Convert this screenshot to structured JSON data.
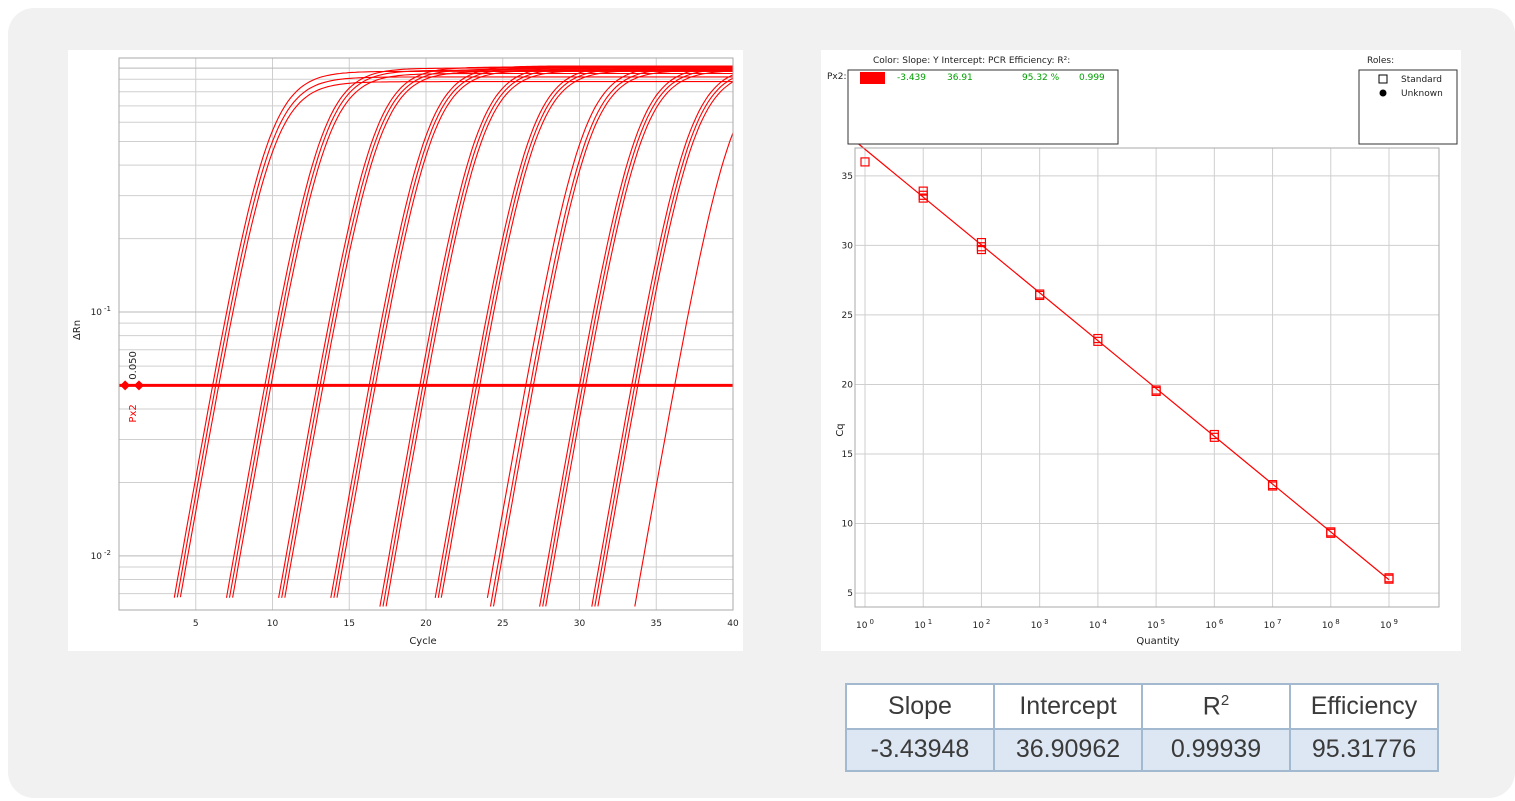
{
  "colors": {
    "curve": "#ff0000",
    "fit_text": "#00a000",
    "grid": "#cfcfcf",
    "table_border": "#a3b9cf",
    "table_value_bg": "#dde7f3"
  },
  "chart_data": [
    {
      "type": "line",
      "xlabel": "Cycle",
      "ylabel": "ΔRn",
      "xlim": [
        0,
        40
      ],
      "ylim": [
        0.006,
        1.1
      ],
      "y_scale": "log",
      "x_ticks": [
        5,
        10,
        15,
        20,
        25,
        30,
        35,
        40
      ],
      "y_ticks": [
        {
          "value": 0.01,
          "label": "10 -2"
        },
        {
          "value": 0.1,
          "label": "10 -1"
        }
      ],
      "threshold": {
        "name": "Px2",
        "value": 0.05,
        "label": "0.050",
        "markers_x": [
          0.4,
          1.3
        ]
      },
      "baseline_floor": 0.006,
      "series": [
        {
          "ct": 6.1,
          "plateau": 0.97,
          "k": 0.82
        },
        {
          "ct": 6.3,
          "plateau": 0.92,
          "k": 0.82
        },
        {
          "ct": 6.5,
          "plateau": 0.88,
          "k": 0.82
        },
        {
          "ct": 9.5,
          "plateau": 1.0,
          "k": 0.82
        },
        {
          "ct": 9.7,
          "plateau": 0.98,
          "k": 0.82
        },
        {
          "ct": 9.9,
          "plateau": 0.95,
          "k": 0.82
        },
        {
          "ct": 12.9,
          "plateau": 1.01,
          "k": 0.82
        },
        {
          "ct": 13.1,
          "plateau": 0.99,
          "k": 0.82
        },
        {
          "ct": 13.3,
          "plateau": 0.97,
          "k": 0.82
        },
        {
          "ct": 16.3,
          "plateau": 1.02,
          "k": 0.82
        },
        {
          "ct": 16.5,
          "plateau": 1.0,
          "k": 0.82
        },
        {
          "ct": 16.7,
          "plateau": 0.98,
          "k": 0.82
        },
        {
          "ct": 19.6,
          "plateau": 1.02,
          "k": 0.82
        },
        {
          "ct": 19.8,
          "plateau": 1.0,
          "k": 0.82
        },
        {
          "ct": 20.0,
          "plateau": 0.98,
          "k": 0.82
        },
        {
          "ct": 23.1,
          "plateau": 1.02,
          "k": 0.82
        },
        {
          "ct": 23.3,
          "plateau": 1.0,
          "k": 0.82
        },
        {
          "ct": 23.5,
          "plateau": 0.98,
          "k": 0.82
        },
        {
          "ct": 26.5,
          "plateau": 1.02,
          "k": 0.82
        },
        {
          "ct": 26.8,
          "plateau": 1.0,
          "k": 0.82
        },
        {
          "ct": 27.0,
          "plateau": 0.98,
          "k": 0.82
        },
        {
          "ct": 30.0,
          "plateau": 1.02,
          "k": 0.82
        },
        {
          "ct": 30.2,
          "plateau": 1.0,
          "k": 0.82
        },
        {
          "ct": 30.4,
          "plateau": 0.98,
          "k": 0.82
        },
        {
          "ct": 33.4,
          "plateau": 1.02,
          "k": 0.82
        },
        {
          "ct": 33.6,
          "plateau": 1.0,
          "k": 0.82
        },
        {
          "ct": 33.8,
          "plateau": 0.98,
          "k": 0.82
        },
        {
          "ct": 36.2,
          "plateau": 1.0,
          "k": 0.82
        }
      ]
    },
    {
      "type": "scatter",
      "xlabel": "Quantity",
      "ylabel": "Cq",
      "x_scale": "log",
      "xlim": [
        1,
        1000000000
      ],
      "ylim": [
        4,
        37
      ],
      "x_ticks": [
        {
          "value": 1,
          "label": "10 0"
        },
        {
          "value": 10,
          "label": "10 1"
        },
        {
          "value": 100,
          "label": "10 2"
        },
        {
          "value": 1000,
          "label": "10 3"
        },
        {
          "value": 10000,
          "label": "10 4"
        },
        {
          "value": 100000,
          "label": "10 5"
        },
        {
          "value": 1000000,
          "label": "10 6"
        },
        {
          "value": 10000000,
          "label": "10 7"
        },
        {
          "value": 100000000,
          "label": "10 8"
        },
        {
          "value": 1000000000,
          "label": "10 9"
        }
      ],
      "y_ticks": [
        5,
        10,
        15,
        20,
        25,
        30,
        35
      ],
      "fit_line": {
        "slope": -3.439,
        "intercept": 36.91
      },
      "points": [
        {
          "x": 1,
          "y": 36.0
        },
        {
          "x": 10,
          "y": 33.9
        },
        {
          "x": 10,
          "y": 33.6
        },
        {
          "x": 10,
          "y": 33.4
        },
        {
          "x": 100,
          "y": 30.2
        },
        {
          "x": 100,
          "y": 29.9
        },
        {
          "x": 100,
          "y": 29.7
        },
        {
          "x": 1000,
          "y": 26.5
        },
        {
          "x": 1000,
          "y": 26.4
        },
        {
          "x": 10000,
          "y": 23.3
        },
        {
          "x": 10000,
          "y": 23.1
        },
        {
          "x": 100000,
          "y": 19.6
        },
        {
          "x": 100000,
          "y": 19.5
        },
        {
          "x": 1000000,
          "y": 16.4
        },
        {
          "x": 1000000,
          "y": 16.2
        },
        {
          "x": 10000000,
          "y": 12.8
        },
        {
          "x": 10000000,
          "y": 12.7
        },
        {
          "x": 100000000,
          "y": 9.4
        },
        {
          "x": 100000000,
          "y": 9.3
        },
        {
          "x": 1000000000,
          "y": 6.1
        },
        {
          "x": 1000000000,
          "y": 6.0
        }
      ],
      "fit_legend": {
        "header": "Color: Slope: Y Intercept: PCR Efficiency: R²:",
        "row_label": "Px2:",
        "slope": "-3.439",
        "intercept": "36.91",
        "efficiency": "95.32 %",
        "r2": "0.999"
      },
      "roles_legend": {
        "title": "Roles:",
        "items": [
          "Standard",
          "Unknown"
        ]
      }
    }
  ],
  "stats_table": {
    "headers": [
      "Slope",
      "Intercept",
      "R",
      "Efficiency"
    ],
    "r_superscript": "2",
    "values": [
      "-3.43948",
      "36.90962",
      "0.99939",
      "95.31776"
    ]
  }
}
